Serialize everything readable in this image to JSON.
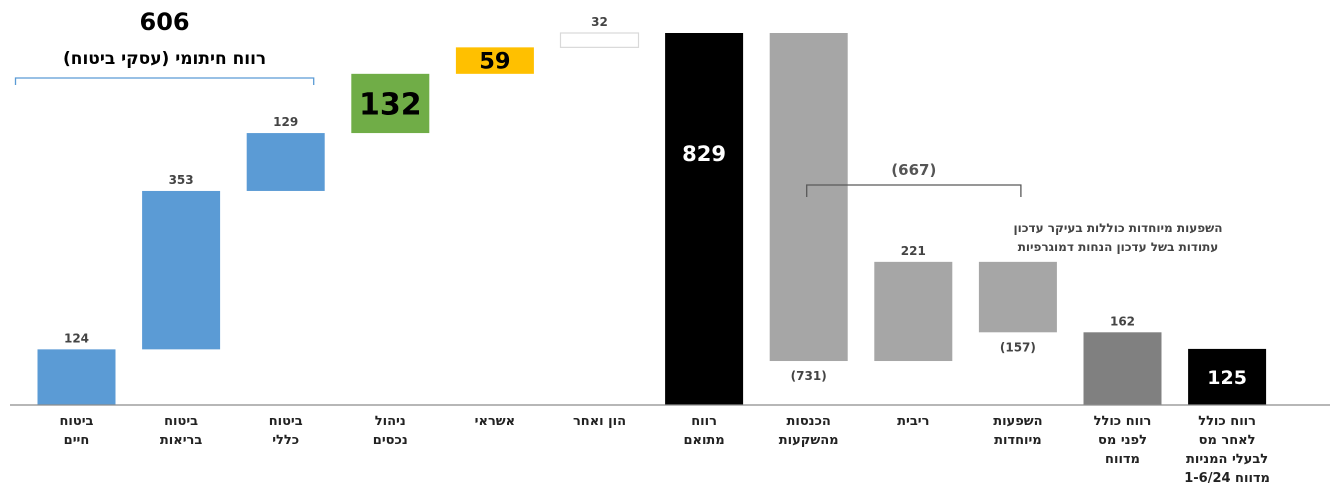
{
  "chart_data": {
    "type": "bar",
    "subtype": "waterfall",
    "title": "",
    "xlabel": "",
    "ylabel": "",
    "grid": false,
    "legend": "none",
    "ylim": [
      0,
      1020
    ],
    "bars": [
      {
        "category": "ביטוח חיים",
        "lines": [
          "ביטוח",
          "חיים"
        ],
        "label": "124",
        "bottom": 0,
        "top": 124,
        "color": "#5b9bd5",
        "label_pos": "above"
      },
      {
        "category": "ביטוח בריאות",
        "lines": [
          "ביטוח",
          "בריאות"
        ],
        "label": "353",
        "bottom": 124,
        "top": 477,
        "color": "#5b9bd5",
        "label_pos": "above"
      },
      {
        "category": "ביטוח כללי",
        "lines": [
          "ביטוח",
          "כללי"
        ],
        "label": "129",
        "bottom": 477,
        "top": 606,
        "color": "#5b9bd5",
        "label_pos": "above"
      },
      {
        "category": "ניהול נכסים",
        "lines": [
          "ניהול",
          "נכסים"
        ],
        "label": "132",
        "bottom": 606,
        "top": 738,
        "color": "#70ad47",
        "label_pos": "inside-big"
      },
      {
        "category": "אשראי",
        "lines": [
          "אשראי"
        ],
        "label": "59",
        "bottom": 738,
        "top": 797,
        "color": "#ffc000",
        "label_pos": "inside-big"
      },
      {
        "category": "הון ואחר",
        "lines": [
          "הון ואחר"
        ],
        "label": "32",
        "bottom": 797,
        "top": 829,
        "color": "#ffffff",
        "stroke": "#d9d9d9",
        "label_pos": "above"
      },
      {
        "category": "רווח מתואם",
        "lines": [
          "רווח",
          "מתואם"
        ],
        "label": "829",
        "bottom": 0,
        "top": 829,
        "color": "#000000",
        "label_pos": "inside-top-white"
      },
      {
        "category": "הכנסות מהשקעות",
        "lines": [
          "הכנסות",
          "מהשקעות"
        ],
        "label": "(731)",
        "bottom": 98,
        "top": 829,
        "color": "#a6a6a6",
        "label_pos": "below"
      },
      {
        "category": "ריבית",
        "lines": [
          "ריבית"
        ],
        "label": "221",
        "bottom": 98,
        "top": 319,
        "color": "#a6a6a6",
        "label_pos": "above"
      },
      {
        "category": "השפעות מיוחדות",
        "lines": [
          "השפעות",
          "מיוחדות"
        ],
        "label": "(157)",
        "bottom": 162,
        "top": 319,
        "color": "#a6a6a6",
        "label_pos": "below"
      },
      {
        "category": "רווח כולל לפני מס מדווח",
        "lines": [
          "רווח כולל",
          "לפני מס",
          "מדווח"
        ],
        "label": "162",
        "bottom": 0,
        "top": 162,
        "color": "#808080",
        "label_pos": "above"
      },
      {
        "category": "רווח כולל לאחר מס לבעלי המניות מדווח 1-6/24",
        "lines": [
          "רווח כולל",
          "לאחר מס",
          "לבעלי המניות",
          "מדווח 1-6/24"
        ],
        "label": "125",
        "bottom": 0,
        "top": 125,
        "color": "#000000",
        "label_pos": "inside-white"
      }
    ],
    "groups": [
      {
        "label": "606",
        "sublabel": "רווח חיתומי (עסקי ביטוח)",
        "from": 0,
        "to": 2,
        "color": "#5b9bd5"
      },
      {
        "label": "(667)",
        "from": 7,
        "to": 9,
        "color": "#595959"
      }
    ],
    "annotation": [
      "השפעות מיוחדות כוללות בעיקר עדכון",
      "עתודות בשל עדכון הנחות דמוגרפיות"
    ]
  }
}
